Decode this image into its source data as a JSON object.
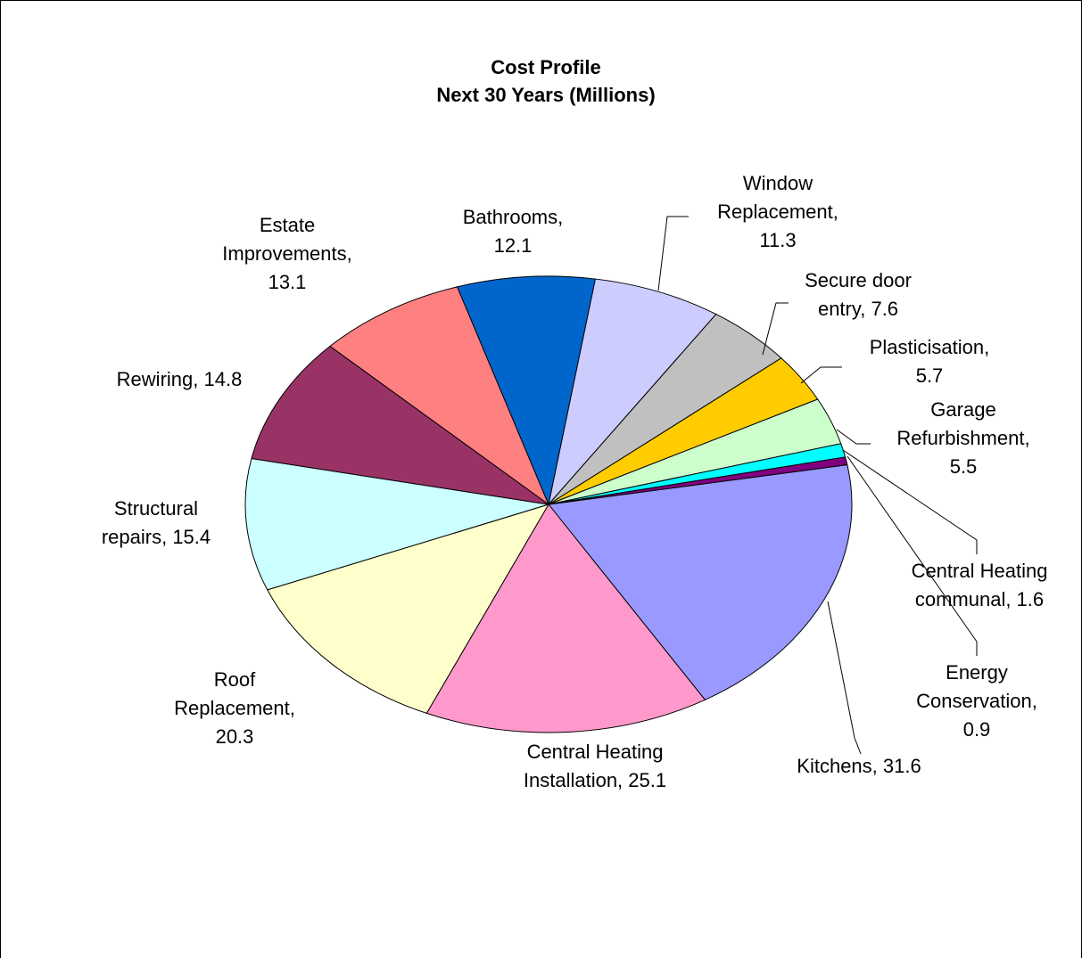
{
  "chart_data": {
    "type": "pie",
    "title": "Cost Profile",
    "subtitle": "Next 30 Years (Millions)",
    "values": [
      31.6,
      25.1,
      20.3,
      15.4,
      14.8,
      13.1,
      12.1,
      11.3,
      7.6,
      5.7,
      5.5,
      1.6,
      0.9
    ],
    "value_labels": [
      "Kitchens, 31.6",
      "Central Heating Installation, 25.1",
      "Roof Replacement, 20.3",
      "Structural repairs, 15.4",
      "Rewiring, 14.8",
      "Estate Improvements, 13.1",
      "Bathrooms, 12.1",
      "Window Replacement, 11.3",
      "Secure door entry, 7.6",
      "Plasticisation, 5.7",
      "Garage Refurbishment, 5.5",
      "Central Heating communal, 1.6",
      "Energy Conservation, 0.9"
    ],
    "colors": [
      "#9999ff",
      "#ff99cc",
      "#ffffcc",
      "#ccffff",
      "#993366",
      "#ff8080",
      "#0066cc",
      "#ccccff",
      "#c0c0c0",
      "#ffcc00",
      "#ccffcc",
      "#00ffff",
      "#800080"
    ]
  }
}
